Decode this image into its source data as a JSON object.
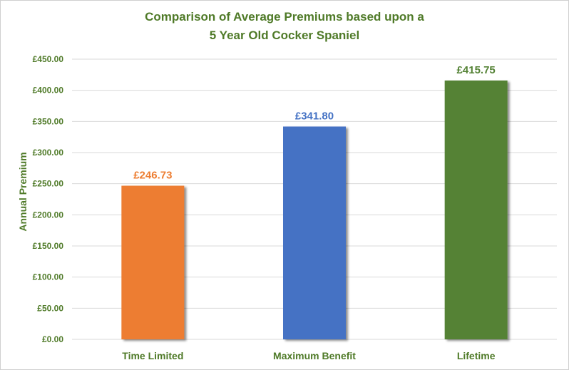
{
  "chart_data": {
    "type": "bar",
    "title_line1": "Comparison  of Average Premiums based upon a",
    "title_line2": "5 Year Old Cocker Spaniel",
    "ylabel": "Annual Premium",
    "xlabel": "",
    "ylim": [
      0,
      450
    ],
    "yticks": [
      0,
      50,
      100,
      150,
      200,
      250,
      300,
      350,
      400,
      450
    ],
    "ytick_labels": [
      "£0.00",
      "£50.00",
      "£100.00",
      "£150.00",
      "£200.00",
      "£250.00",
      "£300.00",
      "£350.00",
      "£400.00",
      "£450.00"
    ],
    "grid": true,
    "categories": [
      "Time Limited",
      "Maximum Benefit",
      "Lifetime"
    ],
    "values": [
      246.73,
      341.8,
      415.75
    ],
    "data_labels": [
      "£246.73",
      "£341.80",
      "£415.75"
    ],
    "colors": [
      "#ed7d31",
      "#4472c4",
      "#548235"
    ],
    "label_colors": [
      "#ed7d31",
      "#4472c4",
      "#548235"
    ]
  }
}
